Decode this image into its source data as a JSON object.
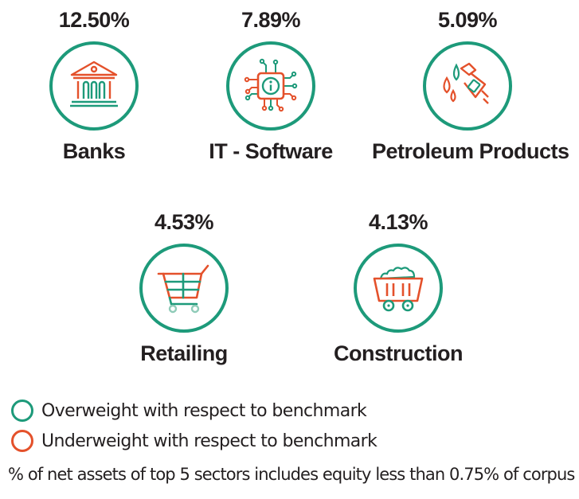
{
  "colors": {
    "overweight": "#1d9a7a",
    "underweight": "#e4512b"
  },
  "sectors": [
    {
      "name": "Banks",
      "percent": "12.50%",
      "icon": "bank-building-icon",
      "weight": "overweight"
    },
    {
      "name": "IT - Software",
      "percent": "7.89%",
      "icon": "microchip-icon",
      "weight": "overweight"
    },
    {
      "name": "Petroleum Products",
      "percent": "5.09%",
      "icon": "fuel-nozzle-icon",
      "weight": "overweight"
    },
    {
      "name": "Retailing",
      "percent": "4.53%",
      "icon": "shopping-cart-icon",
      "weight": "overweight"
    },
    {
      "name": "Construction",
      "percent": "4.13%",
      "icon": "mine-cart-icon",
      "weight": "overweight"
    }
  ],
  "legend": {
    "overweight": "Overweight with respect to benchmark",
    "underweight": "Underweight with respect to benchmark"
  },
  "footnote": "% of net assets of top 5 sectors includes equity less than 0.75% of corpus"
}
